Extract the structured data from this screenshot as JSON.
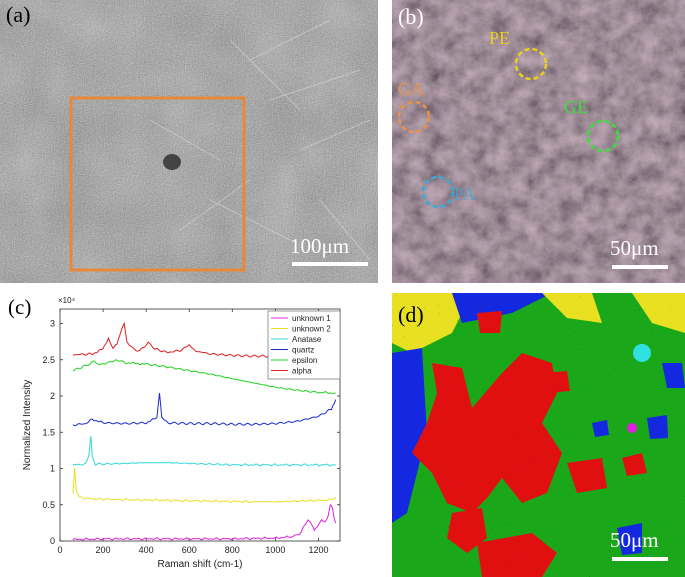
{
  "panels": {
    "a": {
      "label": "(a)",
      "scale": "100μm"
    },
    "b": {
      "label": "(b)",
      "scale": "50μm",
      "annotations": [
        {
          "text": "PE",
          "color": "#e8d020"
        },
        {
          "text": "GA",
          "color": "#e8924a"
        },
        {
          "text": "GE",
          "color": "#3ae03a"
        },
        {
          "text": "PA",
          "color": "#3aa8d8"
        }
      ]
    },
    "c": {
      "label": "(c)"
    },
    "d": {
      "label": "(d)",
      "scale": "50μm"
    }
  },
  "chart_data": {
    "type": "line",
    "xlabel": "Raman shift (cm-1)",
    "ylabel": "Normalized Intensity",
    "y_multiplier": "×10⁴",
    "xlim": [
      0,
      1300
    ],
    "ylim": [
      0,
      3.2
    ],
    "x_ticks": [
      0,
      200,
      400,
      600,
      800,
      1000,
      1200
    ],
    "y_ticks": [
      0,
      0.5,
      1,
      1.5,
      2,
      2.5,
      3
    ],
    "y_tick_labels": [
      "0",
      "0.5",
      "1",
      "1.5",
      "2",
      "2.5",
      "3"
    ],
    "legend_position": "top-right",
    "series": [
      {
        "name": "unknown 1",
        "color": "#e020e0",
        "points": [
          [
            60,
            0.02
          ],
          [
            200,
            0.03
          ],
          [
            400,
            0.03
          ],
          [
            600,
            0.03
          ],
          [
            800,
            0.03
          ],
          [
            1000,
            0.04
          ],
          [
            1080,
            0.06
          ],
          [
            1120,
            0.12
          ],
          [
            1150,
            0.3
          ],
          [
            1165,
            0.25
          ],
          [
            1180,
            0.15
          ],
          [
            1200,
            0.22
          ],
          [
            1215,
            0.3
          ],
          [
            1230,
            0.25
          ],
          [
            1245,
            0.35
          ],
          [
            1255,
            0.5
          ],
          [
            1265,
            0.45
          ],
          [
            1275,
            0.3
          ],
          [
            1280,
            0.25
          ]
        ]
      },
      {
        "name": "unknown 2",
        "color": "#e8e020",
        "points": [
          [
            60,
            0.65
          ],
          [
            68,
            1.0
          ],
          [
            75,
            0.7
          ],
          [
            90,
            0.6
          ],
          [
            150,
            0.58
          ],
          [
            300,
            0.57
          ],
          [
            500,
            0.56
          ],
          [
            700,
            0.55
          ],
          [
            900,
            0.54
          ],
          [
            1000,
            0.54
          ],
          [
            1100,
            0.55
          ],
          [
            1200,
            0.56
          ],
          [
            1260,
            0.57
          ],
          [
            1280,
            0.6
          ]
        ]
      },
      {
        "name": "Anatase",
        "color": "#30d8d8",
        "points": [
          [
            60,
            1.05
          ],
          [
            120,
            1.06
          ],
          [
            135,
            1.2
          ],
          [
            143,
            1.45
          ],
          [
            150,
            1.15
          ],
          [
            165,
            1.06
          ],
          [
            300,
            1.07
          ],
          [
            400,
            1.08
          ],
          [
            500,
            1.08
          ],
          [
            600,
            1.07
          ],
          [
            700,
            1.06
          ],
          [
            800,
            1.05
          ],
          [
            1000,
            1.05
          ],
          [
            1200,
            1.05
          ],
          [
            1280,
            1.05
          ]
        ]
      },
      {
        "name": "quartz",
        "color": "#1a2ad0",
        "points": [
          [
            60,
            1.6
          ],
          [
            120,
            1.62
          ],
          [
            150,
            1.68
          ],
          [
            200,
            1.63
          ],
          [
            300,
            1.62
          ],
          [
            400,
            1.63
          ],
          [
            450,
            1.7
          ],
          [
            462,
            2.05
          ],
          [
            472,
            1.7
          ],
          [
            500,
            1.63
          ],
          [
            600,
            1.62
          ],
          [
            700,
            1.62
          ],
          [
            800,
            1.61
          ],
          [
            900,
            1.61
          ],
          [
            1000,
            1.62
          ],
          [
            1100,
            1.65
          ],
          [
            1200,
            1.72
          ],
          [
            1260,
            1.82
          ],
          [
            1280,
            1.95
          ]
        ]
      },
      {
        "name": "epsilon",
        "color": "#20d020",
        "points": [
          [
            60,
            2.35
          ],
          [
            120,
            2.42
          ],
          [
            160,
            2.48
          ],
          [
            180,
            2.44
          ],
          [
            220,
            2.45
          ],
          [
            260,
            2.5
          ],
          [
            300,
            2.46
          ],
          [
            350,
            2.45
          ],
          [
            400,
            2.44
          ],
          [
            500,
            2.4
          ],
          [
            600,
            2.35
          ],
          [
            700,
            2.3
          ],
          [
            800,
            2.24
          ],
          [
            900,
            2.18
          ],
          [
            1000,
            2.12
          ],
          [
            1100,
            2.08
          ],
          [
            1200,
            2.05
          ],
          [
            1280,
            2.04
          ]
        ]
      },
      {
        "name": "alpha",
        "color": "#e02020",
        "points": [
          [
            60,
            2.57
          ],
          [
            150,
            2.58
          ],
          [
            200,
            2.65
          ],
          [
            225,
            2.8
          ],
          [
            245,
            2.66
          ],
          [
            265,
            2.72
          ],
          [
            285,
            2.9
          ],
          [
            298,
            3.0
          ],
          [
            310,
            2.75
          ],
          [
            340,
            2.65
          ],
          [
            370,
            2.62
          ],
          [
            410,
            2.74
          ],
          [
            440,
            2.65
          ],
          [
            500,
            2.6
          ],
          [
            560,
            2.63
          ],
          [
            600,
            2.7
          ],
          [
            630,
            2.62
          ],
          [
            700,
            2.58
          ],
          [
            800,
            2.56
          ],
          [
            900,
            2.55
          ],
          [
            1000,
            2.55
          ],
          [
            1100,
            2.55
          ],
          [
            1200,
            2.55
          ],
          [
            1280,
            2.55
          ]
        ]
      }
    ]
  },
  "colors": {
    "highlight_box": "#e8883a",
    "map_green": "#1aa81a",
    "map_red": "#e01010",
    "map_blue": "#1428e0",
    "map_yellow": "#e8e020"
  }
}
